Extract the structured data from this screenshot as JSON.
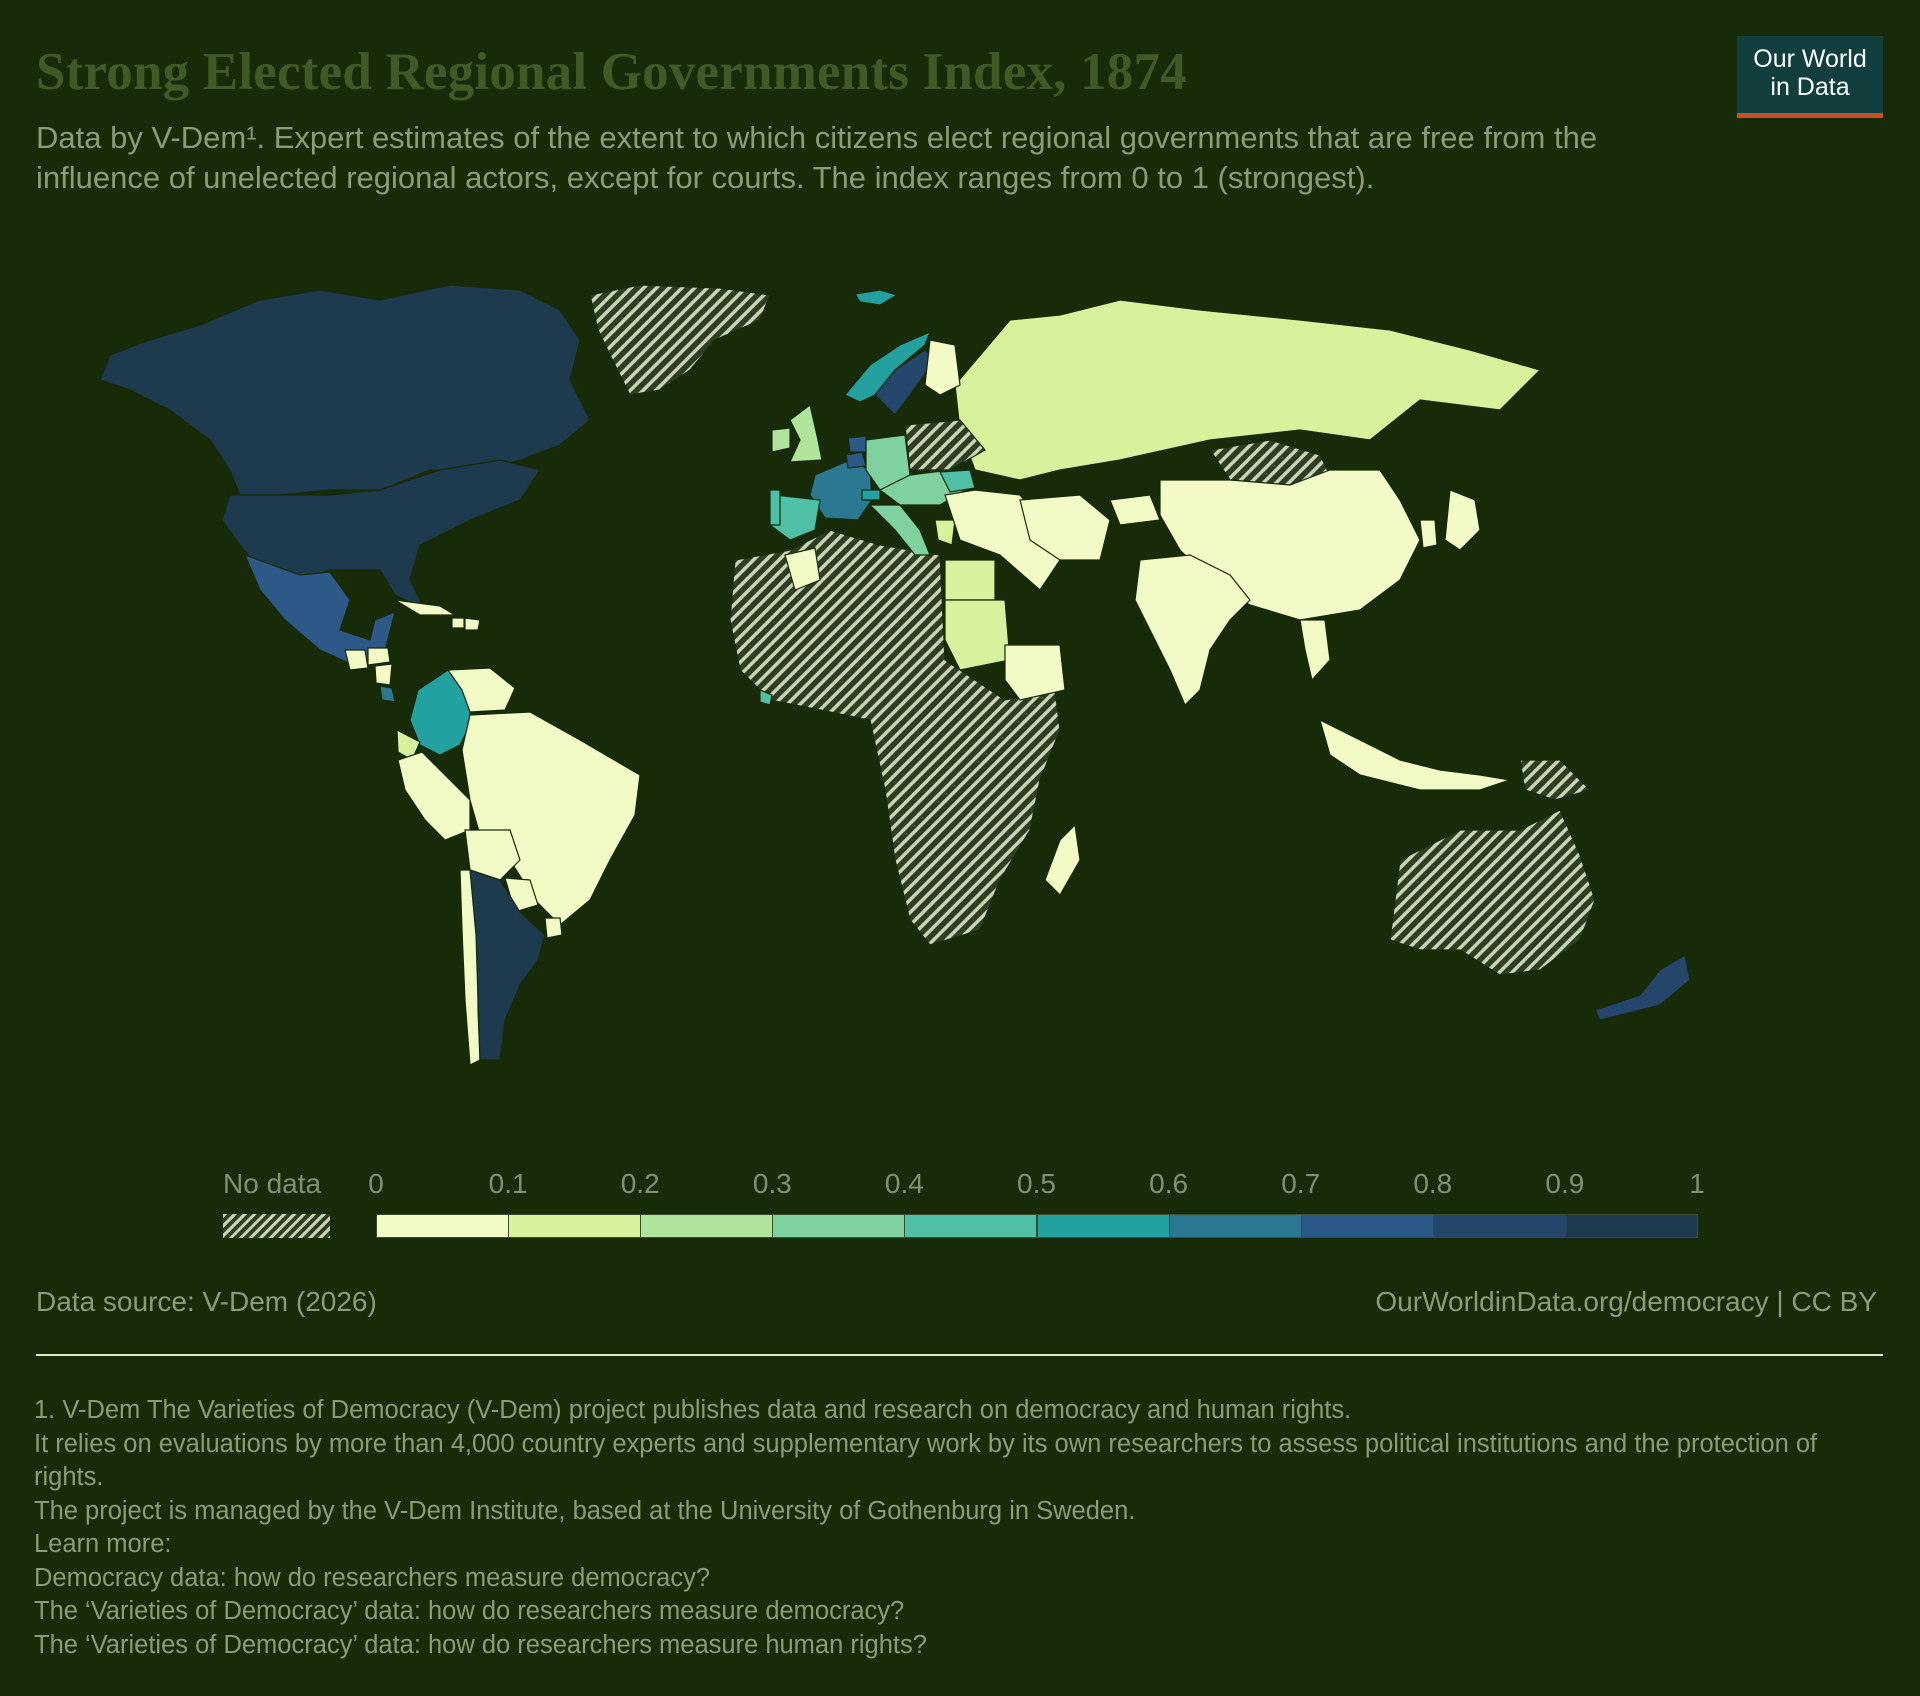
{
  "header": {
    "title": "Strong Elected Regional Governments Index, 1874",
    "subtitle": "Data by V-Dem¹. Expert estimates of the extent to which citizens elect regional governments that are free from the influence of unelected regional actors, except for courts. The index ranges from 0 to 1 (strongest).",
    "logo_line1": "Our World",
    "logo_line2": "in Data"
  },
  "legend": {
    "no_data_label": "No data",
    "ticks": [
      "0",
      "0.1",
      "0.2",
      "0.3",
      "0.4",
      "0.5",
      "0.6",
      "0.7",
      "0.8",
      "0.9",
      "1"
    ],
    "bin_colors": [
      "#f2fbc6",
      "#d6f29c",
      "#b0e39c",
      "#7fd1a0",
      "#4fbfa5",
      "#23a0a0",
      "#2a7891",
      "#2c5987",
      "#25466b",
      "#1d3a4e"
    ]
  },
  "chart_data": {
    "type": "choropleth",
    "year": 1874,
    "scale": [
      0,
      1
    ],
    "regions": [
      {
        "name": "Canada",
        "value": 0.95
      },
      {
        "name": "United States",
        "value": 0.93
      },
      {
        "name": "Mexico",
        "value": 0.78
      },
      {
        "name": "Guatemala",
        "value": 0.05
      },
      {
        "name": "Honduras",
        "value": 0.05
      },
      {
        "name": "Nicaragua",
        "value": 0.05
      },
      {
        "name": "Costa Rica",
        "value": 0.65
      },
      {
        "name": "Colombia",
        "value": 0.52
      },
      {
        "name": "Venezuela",
        "value": 0.05
      },
      {
        "name": "Ecuador",
        "value": 0.12
      },
      {
        "name": "Peru",
        "value": 0.04
      },
      {
        "name": "Brazil",
        "value": 0.03
      },
      {
        "name": "Bolivia",
        "value": 0.05
      },
      {
        "name": "Paraguay",
        "value": 0.05
      },
      {
        "name": "Uruguay",
        "value": 0.05
      },
      {
        "name": "Chile",
        "value": 0.04
      },
      {
        "name": "Argentina",
        "value": 0.96
      },
      {
        "name": "Cuba",
        "value": 0.05
      },
      {
        "name": "Haiti",
        "value": 0.05
      },
      {
        "name": "Dominican Republic",
        "value": 0.05
      },
      {
        "name": "Iceland",
        "value": 0.55
      },
      {
        "name": "Norway",
        "value": 0.55
      },
      {
        "name": "Sweden",
        "value": 0.85
      },
      {
        "name": "Finland",
        "value": 0.05
      },
      {
        "name": "United Kingdom",
        "value": 0.25
      },
      {
        "name": "Ireland",
        "value": 0.25
      },
      {
        "name": "France",
        "value": 0.65
      },
      {
        "name": "Belgium",
        "value": 0.75
      },
      {
        "name": "Netherlands",
        "value": 0.75
      },
      {
        "name": "Switzerland",
        "value": 0.5
      },
      {
        "name": "Germany",
        "value": 0.35
      },
      {
        "name": "Austria-Hungary",
        "value": 0.35
      },
      {
        "name": "Spain",
        "value": 0.45
      },
      {
        "name": "Portugal",
        "value": 0.45
      },
      {
        "name": "Italy",
        "value": 0.35
      },
      {
        "name": "Romania",
        "value": 0.4
      },
      {
        "name": "Greece",
        "value": 0.1
      },
      {
        "name": "Russia",
        "value": 0.12
      },
      {
        "name": "Ottoman Empire",
        "value": 0.05
      },
      {
        "name": "Egypt",
        "value": 0.15
      },
      {
        "name": "Sudan",
        "value": 0.15
      },
      {
        "name": "Ethiopia",
        "value": 0.05
      },
      {
        "name": "Liberia",
        "value": 0.4
      },
      {
        "name": "Morocco",
        "value": 0.05
      },
      {
        "name": "Madagascar",
        "value": 0.05
      },
      {
        "name": "Persia",
        "value": 0.05
      },
      {
        "name": "Afghanistan",
        "value": 0.05
      },
      {
        "name": "China",
        "value": 0.05
      },
      {
        "name": "India",
        "value": 0.05
      },
      {
        "name": "Japan",
        "value": 0.05
      },
      {
        "name": "Korea",
        "value": 0.05
      },
      {
        "name": "Thailand",
        "value": 0.05
      },
      {
        "name": "Indonesia",
        "value": 0.05
      },
      {
        "name": "New Zealand",
        "value": 0.83
      },
      {
        "name": "Greenland",
        "value": null
      },
      {
        "name": "Mongolia",
        "value": null
      },
      {
        "name": "Poland",
        "value": null
      },
      {
        "name": "Australia",
        "value": null
      },
      {
        "name": "Sub-Saharan Africa (most)",
        "value": null
      },
      {
        "name": "Papua New Guinea",
        "value": null
      }
    ]
  },
  "footer": {
    "source": "Data source: V-Dem (2026)",
    "url": "OurWorldinData.org/democracy | CC BY"
  },
  "footnotes": [
    "1. V-Dem The Varieties of Democracy (V-Dem) project publishes data and research on democracy and human rights.",
    "It relies on evaluations by more than 4,000 country experts and supplementary work by its own researchers to assess political institutions and the protection of rights.",
    "The project is managed by the V-Dem Institute, based at the University of Gothenburg in Sweden.",
    "Learn more:",
    "Democracy data: how do researchers measure democracy?",
    "The ‘Varieties of Democracy’ data: how do researchers measure democracy?",
    "The ‘Varieties of Democracy’ data: how do researchers measure human rights?"
  ]
}
